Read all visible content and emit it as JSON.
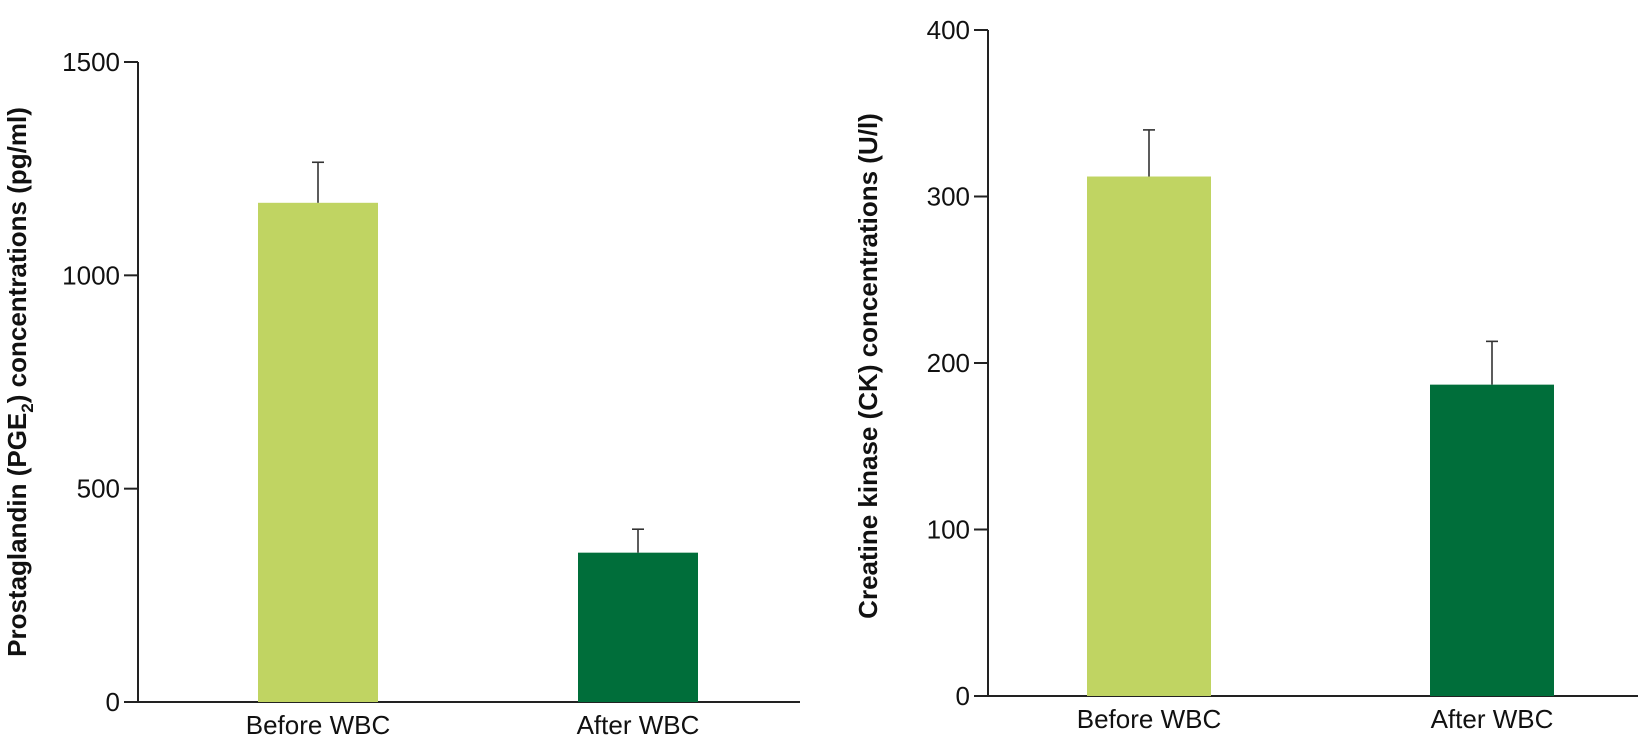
{
  "chart_data": [
    {
      "type": "bar",
      "categories": [
        "Before WBC",
        "After WBC"
      ],
      "values": [
        1170,
        350
      ],
      "errors": [
        95,
        55
      ],
      "colors": [
        "#c0d462",
        "#006e3a"
      ],
      "ylabel_parts": [
        "Prostaglandin (PGE",
        "2",
        ") concentrations  (pg/ml)"
      ],
      "ylim": [
        0,
        1500
      ],
      "yticks": [
        0,
        500,
        1000,
        1500
      ],
      "ytick_labels": [
        "0",
        "500",
        "1000",
        "1500"
      ],
      "grid": false
    },
    {
      "type": "bar",
      "categories": [
        "Before WBC",
        "After WBC"
      ],
      "values": [
        312,
        187
      ],
      "errors": [
        28,
        26
      ],
      "colors": [
        "#c0d462",
        "#006e3a"
      ],
      "ylabel_parts": [
        "Creatine kinase (CK) concentrations (U/l)",
        "",
        ""
      ],
      "ylim": [
        0,
        400
      ],
      "yticks": [
        0,
        100,
        200,
        300,
        400
      ],
      "ytick_labels": [
        "0",
        "100",
        "200",
        "300",
        "400"
      ],
      "grid": false
    }
  ]
}
